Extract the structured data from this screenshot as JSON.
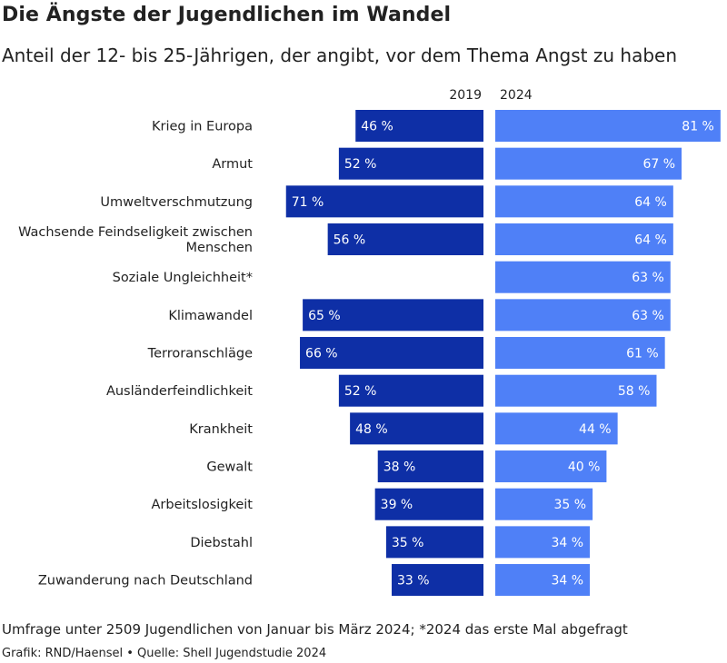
{
  "title": "Die Ängste der Jugendlichen im Wandel",
  "subtitle": "Anteil der 12- bis 25-Jährigen, der angibt, vor dem Thema Angst zu haben",
  "note": "Umfrage unter 2509 Jugendlichen von Januar bis März 2024; *2024 das erste Mal abgefragt",
  "credit": "Grafik: RND/Haensel • Quelle: Shell Jugendstudie 2024",
  "colors": {
    "series_2019": "#0e2fa6",
    "series_2024": "#4f80f7",
    "text": "#222222",
    "bar_label": "#ffffff"
  },
  "chart_data": {
    "type": "bar",
    "orientation": "horizontal-butterfly",
    "value_suffix": " %",
    "categories": [
      "Krieg in Europa",
      "Armut",
      "Umweltverschmutzung",
      "Wachsende Feindseligkeit zwischen Menschen",
      "Soziale Ungleichheit*",
      "Klimawandel",
      "Terroranschläge",
      "Ausländerfeindlichkeit",
      "Krankheit",
      "Gewalt",
      "Arbeitslosigkeit",
      "Diebstahl",
      "Zuwanderung nach Deutschland"
    ],
    "category_lines": [
      [
        "Krieg in Europa"
      ],
      [
        "Armut"
      ],
      [
        "Umweltverschmutzung"
      ],
      [
        "Wachsende Feindseligkeit zwischen",
        "Menschen"
      ],
      [
        "Soziale Ungleichheit*"
      ],
      [
        "Klimawandel"
      ],
      [
        "Terroranschläge"
      ],
      [
        "Ausländerfeindlichkeit"
      ],
      [
        "Krankheit"
      ],
      [
        "Gewalt"
      ],
      [
        "Arbeitslosigkeit"
      ],
      [
        "Diebstahl"
      ],
      [
        "Zuwanderung nach Deutschland"
      ]
    ],
    "series": [
      {
        "name": "2019",
        "values": [
          46,
          52,
          71,
          56,
          null,
          65,
          66,
          52,
          48,
          38,
          39,
          35,
          33
        ]
      },
      {
        "name": "2024",
        "values": [
          81,
          67,
          64,
          64,
          63,
          63,
          61,
          58,
          44,
          40,
          35,
          34,
          34
        ]
      }
    ],
    "xlim": [
      0,
      81
    ],
    "grid": false,
    "legend": "column headers above bars"
  }
}
